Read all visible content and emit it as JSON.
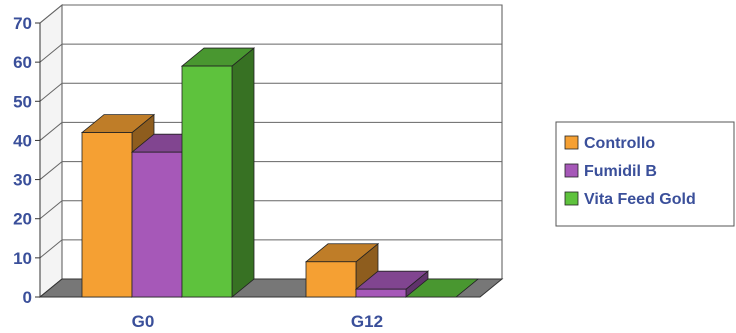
{
  "chart_data": {
    "type": "bar",
    "categories": [
      "G0",
      "G12"
    ],
    "series": [
      {
        "name": "Controllo",
        "values": [
          42,
          9
        ],
        "color": "#f5a033"
      },
      {
        "name": "Fumidil B",
        "values": [
          37,
          2
        ],
        "color": "#a658b8"
      },
      {
        "name": "Vita Feed Gold",
        "values": [
          59,
          0
        ],
        "color": "#5ec23d"
      }
    ],
    "title": "",
    "xlabel": "",
    "ylabel": "",
    "ylim": [
      0,
      70
    ],
    "yticks": [
      "0",
      "10",
      "20",
      "30",
      "40",
      "50",
      "60",
      "70"
    ],
    "grid": true,
    "legend_position": "right",
    "style": "3d-bar"
  }
}
